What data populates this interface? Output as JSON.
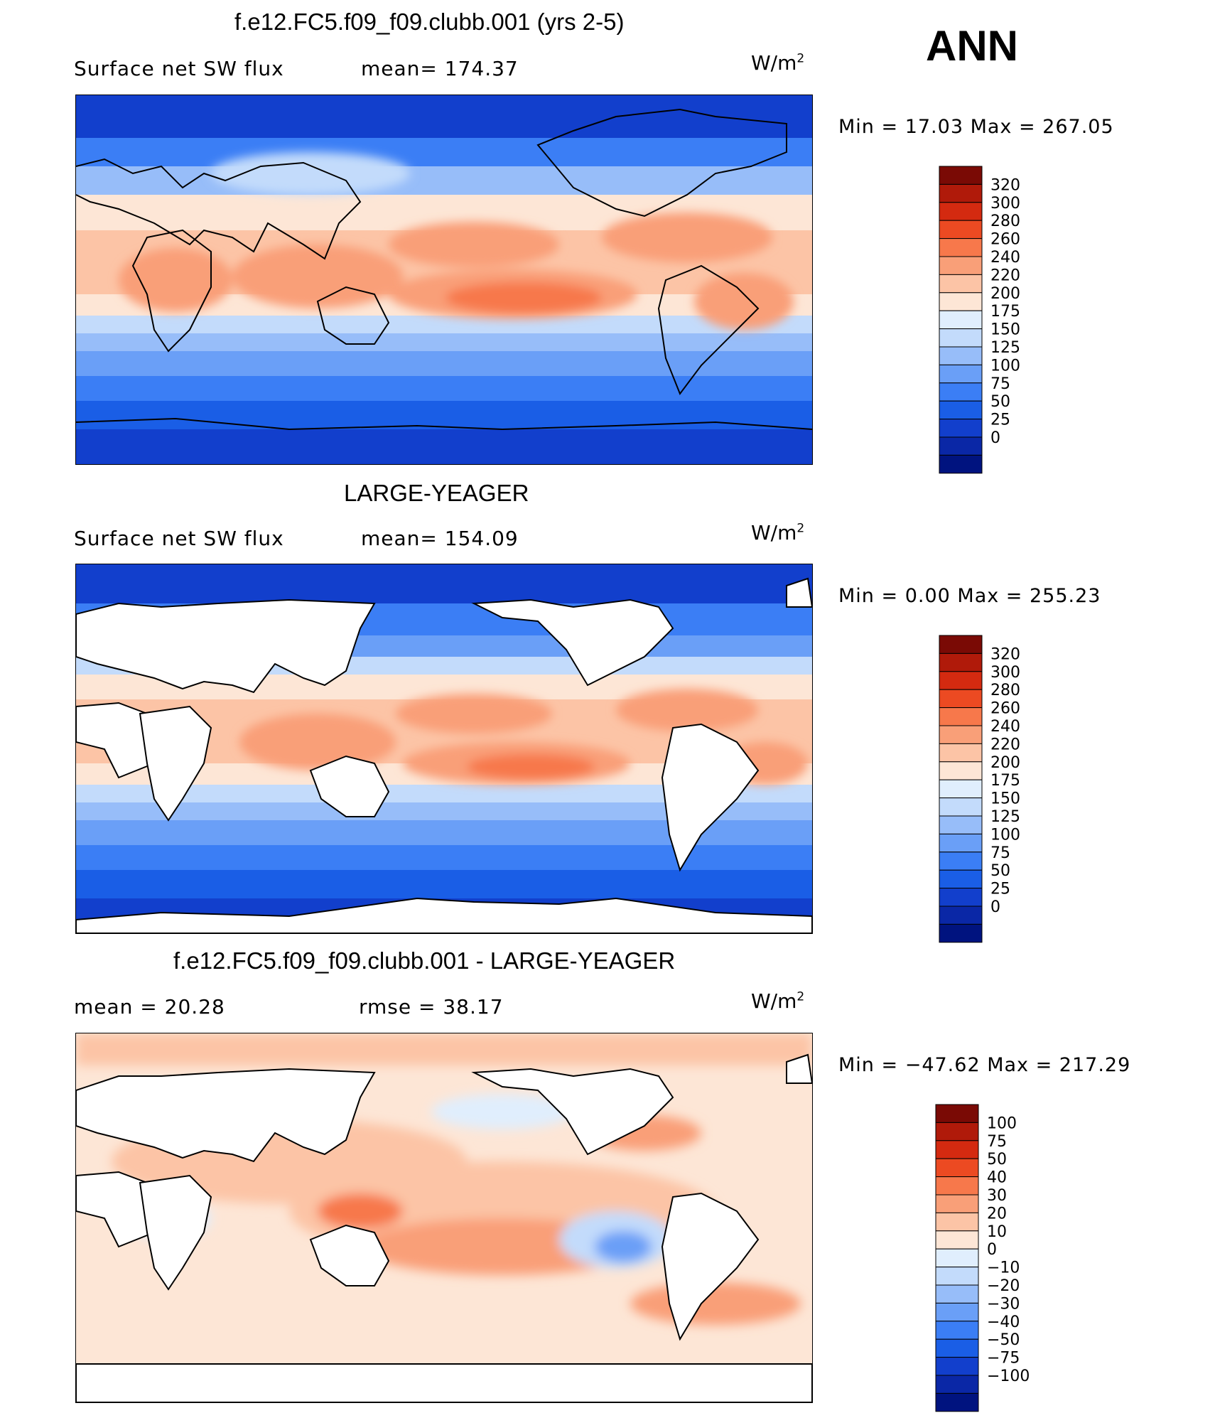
{
  "season": "ANN",
  "units_base": "W/m",
  "units_exp": "2",
  "panels": [
    {
      "title": "f.e12.FC5.f09_f09.clubb.001 (yrs 2-5)",
      "left_label": "Surface net SW flux",
      "mid_label": "mean= 174.37",
      "minmax": "Min =  17.03 Max = 267.05"
    },
    {
      "title": "LARGE-YEAGER",
      "left_label": "Surface net SW flux",
      "mid_label": "mean= 154.09",
      "minmax": "Min =   0.00 Max = 255.23"
    },
    {
      "title": "f.e12.FC5.f09_f09.clubb.001 - LARGE-YEAGER",
      "left_label": "mean =   20.28",
      "mid_label": "rmse =   38.17",
      "minmax": "Min = −47.62 Max = 217.29"
    }
  ],
  "chart_data": [
    {
      "type": "heatmap",
      "title": "f.e12.FC5.f09_f09.clubb.001 (yrs 2-5)",
      "variable": "Surface net SW flux",
      "season": "ANN",
      "units": "W/m2",
      "mean": 174.37,
      "min": 17.03,
      "max": 267.05,
      "land_masked": false,
      "colorbar_levels": [
        0,
        25,
        50,
        75,
        100,
        125,
        150,
        175,
        200,
        220,
        240,
        260,
        280,
        300,
        320
      ],
      "colorbar_labels": [
        "320",
        "300",
        "280",
        "260",
        "240",
        "220",
        "200",
        "175",
        "150",
        "125",
        "100",
        "75",
        "50",
        "25",
        "0"
      ]
    },
    {
      "type": "heatmap",
      "title": "LARGE-YEAGER",
      "variable": "Surface net SW flux",
      "season": "ANN",
      "units": "W/m2",
      "mean": 154.09,
      "min": 0.0,
      "max": 255.23,
      "land_masked": true,
      "colorbar_levels": [
        0,
        25,
        50,
        75,
        100,
        125,
        150,
        175,
        200,
        220,
        240,
        260,
        280,
        300,
        320
      ],
      "colorbar_labels": [
        "320",
        "300",
        "280",
        "260",
        "240",
        "220",
        "200",
        "175",
        "150",
        "125",
        "100",
        "75",
        "50",
        "25",
        "0"
      ]
    },
    {
      "type": "heatmap",
      "title": "f.e12.FC5.f09_f09.clubb.001 - LARGE-YEAGER",
      "season": "ANN",
      "units": "W/m2",
      "mean": 20.28,
      "rmse": 38.17,
      "min": -47.62,
      "max": 217.29,
      "land_masked": true,
      "colorbar_levels": [
        -100,
        -75,
        -50,
        -40,
        -30,
        -20,
        -10,
        0,
        10,
        20,
        30,
        40,
        50,
        75,
        100
      ],
      "colorbar_labels": [
        "100",
        "75",
        "50",
        "40",
        "30",
        "20",
        "10",
        "0",
        "−10",
        "−20",
        "−30",
        "−40",
        "−50",
        "−75",
        "−100"
      ]
    }
  ],
  "colormap": [
    "#00137f",
    "#0a27a6",
    "#123fcc",
    "#1a5ee6",
    "#3b7ef5",
    "#6a9ff7",
    "#97bdf9",
    "#c3dbfb",
    "#e0eefd",
    "#fde6d6",
    "#fcc4a6",
    "#f99f78",
    "#f7784b",
    "#ec4a22",
    "#d42a10",
    "#b01a0a",
    "#7a0a05"
  ]
}
